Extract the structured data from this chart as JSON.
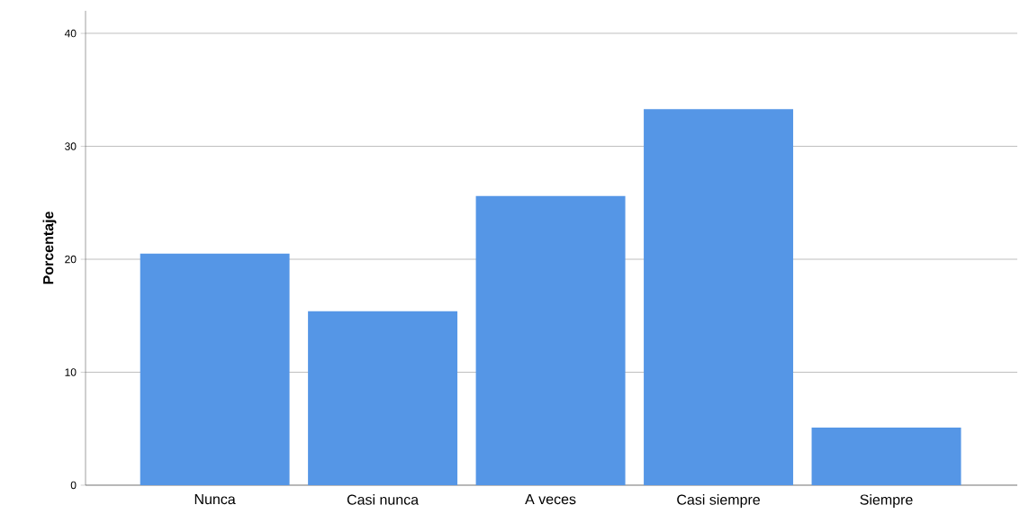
{
  "chart_data": {
    "type": "bar",
    "ylabel": "Porcentaje",
    "categories": [
      "Nunca",
      "Casi nunca",
      "A veces",
      "Casi siempre",
      "Siempre"
    ],
    "values": [
      20.5,
      15.4,
      25.6,
      33.3,
      5.1
    ],
    "color": "#5596e6",
    "ylim": [
      0,
      42
    ],
    "yticks": [
      0,
      10,
      20,
      30,
      40
    ],
    "grid": "y"
  }
}
